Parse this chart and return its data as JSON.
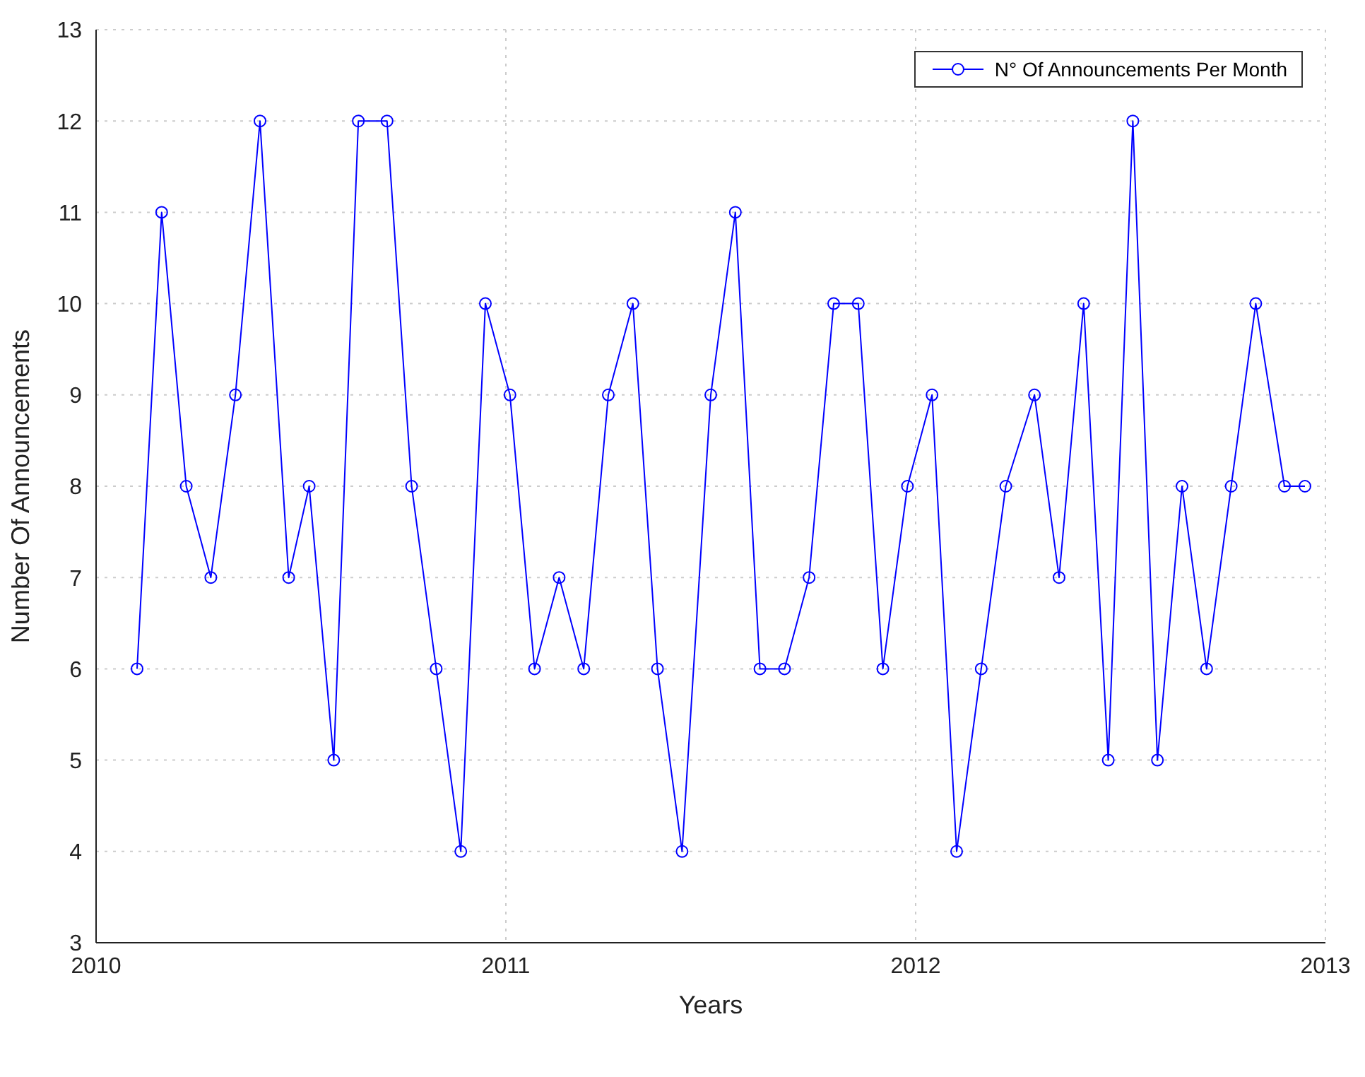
{
  "chart_data": {
    "type": "line",
    "xlabel": "Years",
    "ylabel": "Number Of Announcements",
    "x": [
      2010.1,
      2010.16,
      2010.22,
      2010.28,
      2010.34,
      2010.4,
      2010.47,
      2010.52,
      2010.58,
      2010.64,
      2010.71,
      2010.77,
      2010.83,
      2010.89,
      2010.95,
      2011.01,
      2011.07,
      2011.13,
      2011.19,
      2011.25,
      2011.31,
      2011.37,
      2011.43,
      2011.5,
      2011.56,
      2011.62,
      2011.68,
      2011.74,
      2011.8,
      2011.86,
      2011.92,
      2011.98,
      2012.04,
      2012.1,
      2012.16,
      2012.22,
      2012.29,
      2012.35,
      2012.41,
      2012.47,
      2012.53,
      2012.59,
      2012.65,
      2012.71,
      2012.77,
      2012.83,
      2012.9,
      2012.95
    ],
    "series": [
      {
        "name": "N° Of Announcements Per Month",
        "color": "#0000ff",
        "values": [
          6,
          11,
          8,
          7,
          9,
          12,
          7,
          8,
          5,
          12,
          12,
          8,
          6,
          4,
          10,
          9,
          6,
          7,
          6,
          9,
          10,
          6,
          4,
          9,
          11,
          6,
          6,
          7,
          10,
          10,
          6,
          8,
          9,
          4,
          6,
          8,
          9,
          7,
          10,
          5,
          12,
          5,
          8,
          6,
          8,
          10,
          8,
          8
        ]
      }
    ],
    "xlim": [
      2010,
      2013
    ],
    "xticks": [
      2010,
      2011,
      2012,
      2013
    ],
    "ylim": [
      3,
      13
    ],
    "yticks": [
      3,
      4,
      5,
      6,
      7,
      8,
      9,
      10,
      11,
      12,
      13
    ],
    "grid": true,
    "legend": "top right",
    "marker": "circle",
    "line_style": "solid"
  }
}
